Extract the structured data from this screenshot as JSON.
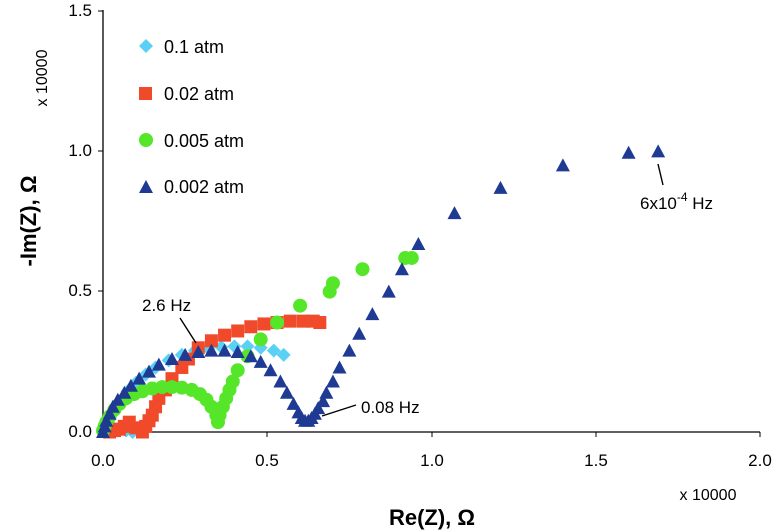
{
  "chart_data": {
    "type": "scatter",
    "title": "",
    "xlabel": "Re(Z), Ω",
    "ylabel": "-Im(Z), Ω",
    "x_multiplier": "x 10000",
    "y_multiplier": "x 10000",
    "xlim": [
      0,
      2.0
    ],
    "ylim": [
      0,
      1.5
    ],
    "xticks": [
      "0.0",
      "0.5",
      "1.0",
      "1.5",
      "2.0"
    ],
    "yticks": [
      "0.0",
      "0.5",
      "1.0",
      "1.5"
    ],
    "grid": false,
    "legend_position": "top-left",
    "series": [
      {
        "name": "0.1 atm",
        "marker": "diamond",
        "color": "#5bd0f5",
        "points": [
          [
            0.005,
            0.0
          ],
          [
            0.01,
            0.015
          ],
          [
            0.015,
            0.035
          ],
          [
            0.025,
            0.06
          ],
          [
            0.04,
            0.09
          ],
          [
            0.055,
            0.115
          ],
          [
            0.075,
            0.145
          ],
          [
            0.1,
            0.175
          ],
          [
            0.13,
            0.205
          ],
          [
            0.16,
            0.23
          ],
          [
            0.2,
            0.255
          ],
          [
            0.24,
            0.275
          ],
          [
            0.28,
            0.29
          ],
          [
            0.32,
            0.298
          ],
          [
            0.36,
            0.303
          ],
          [
            0.4,
            0.305
          ],
          [
            0.44,
            0.305
          ],
          [
            0.48,
            0.3
          ],
          [
            0.52,
            0.29
          ],
          [
            0.55,
            0.275
          ],
          [
            0.07,
            0.005
          ],
          [
            0.05,
            0.015
          ],
          [
            0.09,
            0.0
          ]
        ]
      },
      {
        "name": "0.02 atm",
        "marker": "square",
        "color": "#f04a2a",
        "points": [
          [
            0.02,
            0.0
          ],
          [
            0.035,
            0.005
          ],
          [
            0.05,
            0.01
          ],
          [
            0.065,
            0.02
          ],
          [
            0.08,
            0.035
          ],
          [
            0.1,
            0.015
          ],
          [
            0.12,
            0.0
          ],
          [
            0.13,
            0.02
          ],
          [
            0.14,
            0.04
          ],
          [
            0.15,
            0.06
          ],
          [
            0.16,
            0.09
          ],
          [
            0.17,
            0.12
          ],
          [
            0.19,
            0.15
          ],
          [
            0.21,
            0.19
          ],
          [
            0.24,
            0.23
          ],
          [
            0.26,
            0.26
          ],
          [
            0.29,
            0.3
          ],
          [
            0.33,
            0.325
          ],
          [
            0.37,
            0.345
          ],
          [
            0.41,
            0.36
          ],
          [
            0.45,
            0.375
          ],
          [
            0.49,
            0.385
          ],
          [
            0.53,
            0.39
          ],
          [
            0.57,
            0.395
          ],
          [
            0.61,
            0.395
          ],
          [
            0.64,
            0.395
          ],
          [
            0.66,
            0.39
          ]
        ]
      },
      {
        "name": "0.005 atm",
        "marker": "circle",
        "color": "#55e62a",
        "points": [
          [
            0.0,
            0.005
          ],
          [
            0.005,
            0.02
          ],
          [
            0.01,
            0.035
          ],
          [
            0.02,
            0.055
          ],
          [
            0.035,
            0.08
          ],
          [
            0.05,
            0.1
          ],
          [
            0.07,
            0.12
          ],
          [
            0.095,
            0.135
          ],
          [
            0.12,
            0.145
          ],
          [
            0.15,
            0.155
          ],
          [
            0.18,
            0.16
          ],
          [
            0.21,
            0.16
          ],
          [
            0.24,
            0.158
          ],
          [
            0.27,
            0.15
          ],
          [
            0.295,
            0.135
          ],
          [
            0.315,
            0.115
          ],
          [
            0.33,
            0.09
          ],
          [
            0.345,
            0.06
          ],
          [
            0.35,
            0.035
          ],
          [
            0.355,
            0.06
          ],
          [
            0.365,
            0.09
          ],
          [
            0.375,
            0.12
          ],
          [
            0.385,
            0.15
          ],
          [
            0.395,
            0.18
          ],
          [
            0.41,
            0.22
          ],
          [
            0.44,
            0.27
          ],
          [
            0.48,
            0.33
          ],
          [
            0.53,
            0.39
          ],
          [
            0.6,
            0.45
          ],
          [
            0.69,
            0.5
          ],
          [
            0.7,
            0.53
          ],
          [
            0.79,
            0.58
          ],
          [
            0.92,
            0.62
          ],
          [
            0.94,
            0.62
          ]
        ]
      },
      {
        "name": "0.002 atm",
        "marker": "triangle",
        "color": "#1f3a93",
        "points": [
          [
            0.0,
            0.0
          ],
          [
            0.005,
            0.02
          ],
          [
            0.01,
            0.04
          ],
          [
            0.02,
            0.065
          ],
          [
            0.03,
            0.09
          ],
          [
            0.045,
            0.115
          ],
          [
            0.065,
            0.14
          ],
          [
            0.085,
            0.165
          ],
          [
            0.11,
            0.19
          ],
          [
            0.14,
            0.215
          ],
          [
            0.17,
            0.24
          ],
          [
            0.21,
            0.26
          ],
          [
            0.25,
            0.275
          ],
          [
            0.29,
            0.285
          ],
          [
            0.33,
            0.29
          ],
          [
            0.37,
            0.29
          ],
          [
            0.41,
            0.285
          ],
          [
            0.45,
            0.27
          ],
          [
            0.48,
            0.25
          ],
          [
            0.51,
            0.22
          ],
          [
            0.54,
            0.18
          ],
          [
            0.56,
            0.14
          ],
          [
            0.58,
            0.1
          ],
          [
            0.595,
            0.07
          ],
          [
            0.605,
            0.05
          ],
          [
            0.615,
            0.04
          ],
          [
            0.625,
            0.04
          ],
          [
            0.635,
            0.05
          ],
          [
            0.645,
            0.065
          ],
          [
            0.655,
            0.085
          ],
          [
            0.67,
            0.11
          ],
          [
            0.68,
            0.14
          ],
          [
            0.7,
            0.18
          ],
          [
            0.72,
            0.23
          ],
          [
            0.75,
            0.29
          ],
          [
            0.78,
            0.35
          ],
          [
            0.82,
            0.42
          ],
          [
            0.87,
            0.5
          ],
          [
            0.91,
            0.58
          ],
          [
            0.96,
            0.67
          ],
          [
            1.07,
            0.78
          ],
          [
            1.21,
            0.87
          ],
          [
            1.4,
            0.95
          ],
          [
            1.6,
            0.995
          ],
          [
            1.69,
            1.0
          ]
        ]
      }
    ],
    "annotations": [
      {
        "label": "2.6 Hz",
        "x": 0.28,
        "y": 0.3
      },
      {
        "label": "0.08 Hz",
        "x": 0.62,
        "y": 0.04
      },
      {
        "label": "6x10-4 Hz",
        "x": 1.69,
        "y": 1.0
      }
    ]
  }
}
